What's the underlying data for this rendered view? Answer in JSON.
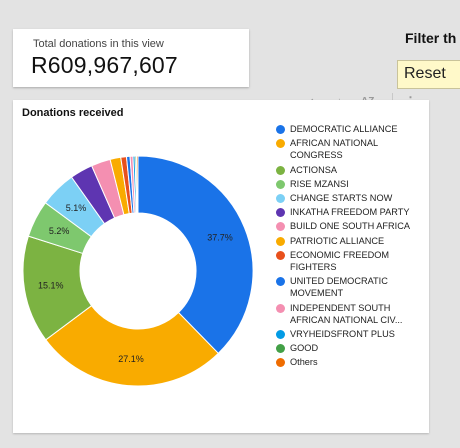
{
  "kpi": {
    "label": "Total donations in this view",
    "value": "R609,967,607"
  },
  "filter": {
    "title": "Filter th",
    "reset_label": "Reset"
  },
  "toolbar": {
    "up_icon": "arrow-up-icon",
    "down_icon": "arrow-down-icon",
    "sort_icon": "sort-az-icon",
    "more_icon": "more-vertical-icon"
  },
  "chart_data": {
    "type": "pie",
    "donut": true,
    "title": "Donations received",
    "legend_position": "right",
    "slices": [
      {
        "label": "DEMOCRATIC ALLIANCE",
        "value": 37.7,
        "display": "37.7%",
        "color": "#1a73e8"
      },
      {
        "label": "AFRICAN NATIONAL CONGRESS",
        "value": 27.1,
        "display": "27.1%",
        "color": "#f9ab00"
      },
      {
        "label": "ACTIONSA",
        "value": 15.1,
        "display": "15.1%",
        "color": "#7cb342"
      },
      {
        "label": "RISE MZANSI",
        "value": 5.2,
        "display": "5.2%",
        "color": "#7ec86e"
      },
      {
        "label": "CHANGE STARTS NOW",
        "value": 5.1,
        "display": "5.1%",
        "color": "#7cd0f5"
      },
      {
        "label": "INKATHA FREEDOM PARTY",
        "value": 3.2,
        "display": "",
        "color": "#5e35b1"
      },
      {
        "label": "BUILD ONE SOUTH AFRICA",
        "value": 2.7,
        "display": "",
        "color": "#f48fb1"
      },
      {
        "label": "PATRIOTIC ALLIANCE",
        "value": 1.5,
        "display": "",
        "color": "#f9ab00"
      },
      {
        "label": "ECONOMIC FREEDOM FIGHTERS",
        "value": 0.8,
        "display": "",
        "color": "#e8501c"
      },
      {
        "label": "UNITED DEMOCRATIC MOVEMENT",
        "value": 0.5,
        "display": "",
        "color": "#1a73e8"
      },
      {
        "label": "INDEPENDENT SOUTH AFRICAN NATIONAL CIV...",
        "value": 0.4,
        "display": "",
        "color": "#f48fb1"
      },
      {
        "label": "VRYHEIDSFRONT PLUS",
        "value": 0.3,
        "display": "",
        "color": "#039be5"
      },
      {
        "label": "GOOD",
        "value": 0.2,
        "display": "",
        "color": "#43a047"
      },
      {
        "label": "Others",
        "value": 0.2,
        "display": "",
        "color": "#ef6c00"
      }
    ]
  }
}
